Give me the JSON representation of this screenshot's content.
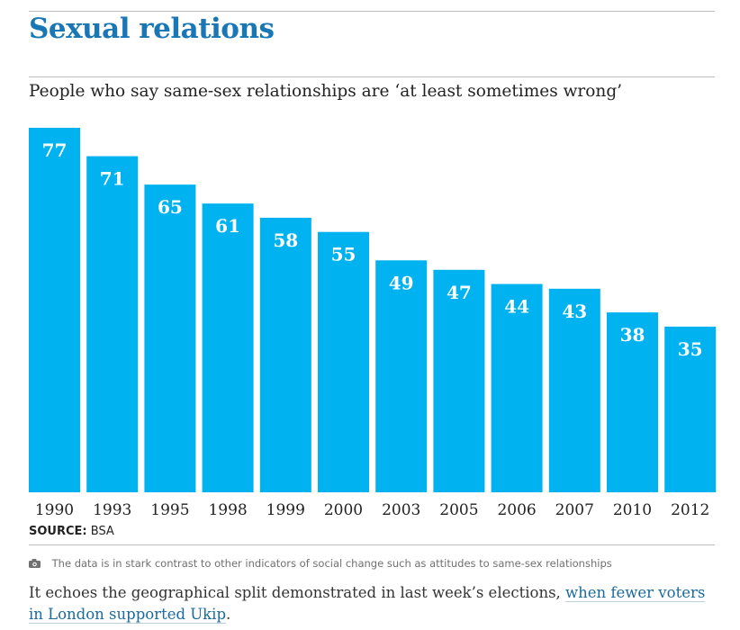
{
  "title": "Sexual relations",
  "subtitle": "People who say same-sex relationships are ‘at least sometimes wrong’",
  "source_label": "SOURCE:",
  "source_value": "BSA",
  "caption": "The data is in stark contrast to other indicators of social change such as attitudes to same-sex relationships",
  "body_text": "It echoes the geographical split demonstrated in last week’s elections, ",
  "body_link": "when fewer voters in London supported Ukip",
  "body_end": ".",
  "colors": {
    "bar": "#00b2f0",
    "bar_label": "#ffffff",
    "title": "#1a77b6",
    "link": "#1a6a9c"
  },
  "icons": {
    "caption_icon": "camera-icon"
  },
  "chart_data": {
    "type": "bar",
    "categories": [
      "1990",
      "1993",
      "1995",
      "1998",
      "1999",
      "2000",
      "2003",
      "2005",
      "2006",
      "2007",
      "2010",
      "2012"
    ],
    "values": [
      77,
      71,
      65,
      61,
      58,
      55,
      49,
      47,
      44,
      43,
      38,
      35
    ],
    "title": "Sexual relations",
    "subtitle": "People who say same-sex relationships are ‘at least sometimes wrong’",
    "ylim": [
      0,
      77
    ],
    "grid": false,
    "legend": "none",
    "data_labels": "inside-top"
  }
}
